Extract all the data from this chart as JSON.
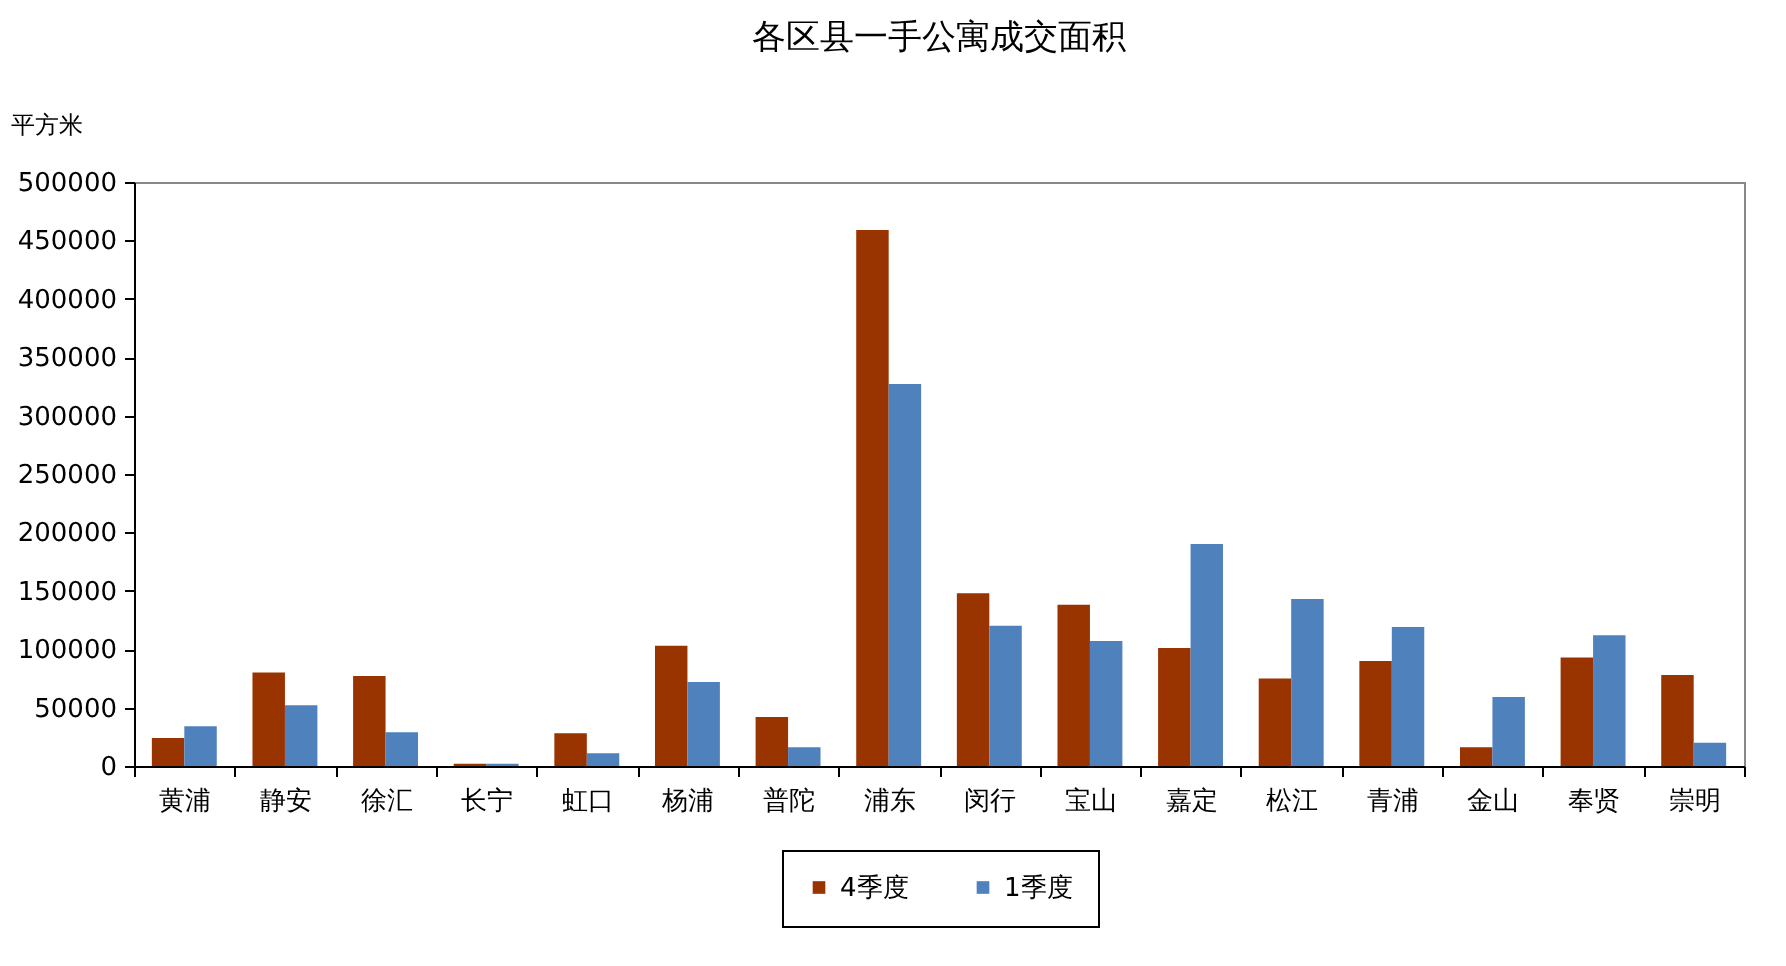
{
  "chart_data": {
    "type": "bar",
    "title": "各区县一手公寓成交面积",
    "ylabel": "平方米",
    "categories": [
      "黄浦",
      "静安",
      "徐汇",
      "长宁",
      "虹口",
      "杨浦",
      "普陀",
      "浦东",
      "闵行",
      "宝山",
      "嘉定",
      "松江",
      "青浦",
      "金山",
      "奉贤",
      "崇明"
    ],
    "series": [
      {
        "name": "4季度",
        "color": "#993300",
        "values": [
          24000,
          80000,
          77000,
          2000,
          28000,
          103000,
          42000,
          459000,
          148000,
          138000,
          101000,
          75000,
          90000,
          16000,
          93000,
          78000
        ]
      },
      {
        "name": "1季度",
        "color": "#4f81bd",
        "values": [
          34000,
          52000,
          29000,
          2000,
          11000,
          72000,
          16000,
          327000,
          120000,
          107000,
          190000,
          143000,
          119000,
          59000,
          112000,
          20000
        ]
      }
    ],
    "ylim": [
      0,
      500000
    ],
    "yticks": [
      0,
      50000,
      100000,
      150000,
      200000,
      250000,
      300000,
      350000,
      400000,
      450000,
      500000
    ],
    "grid": false,
    "legend": "bottom"
  }
}
